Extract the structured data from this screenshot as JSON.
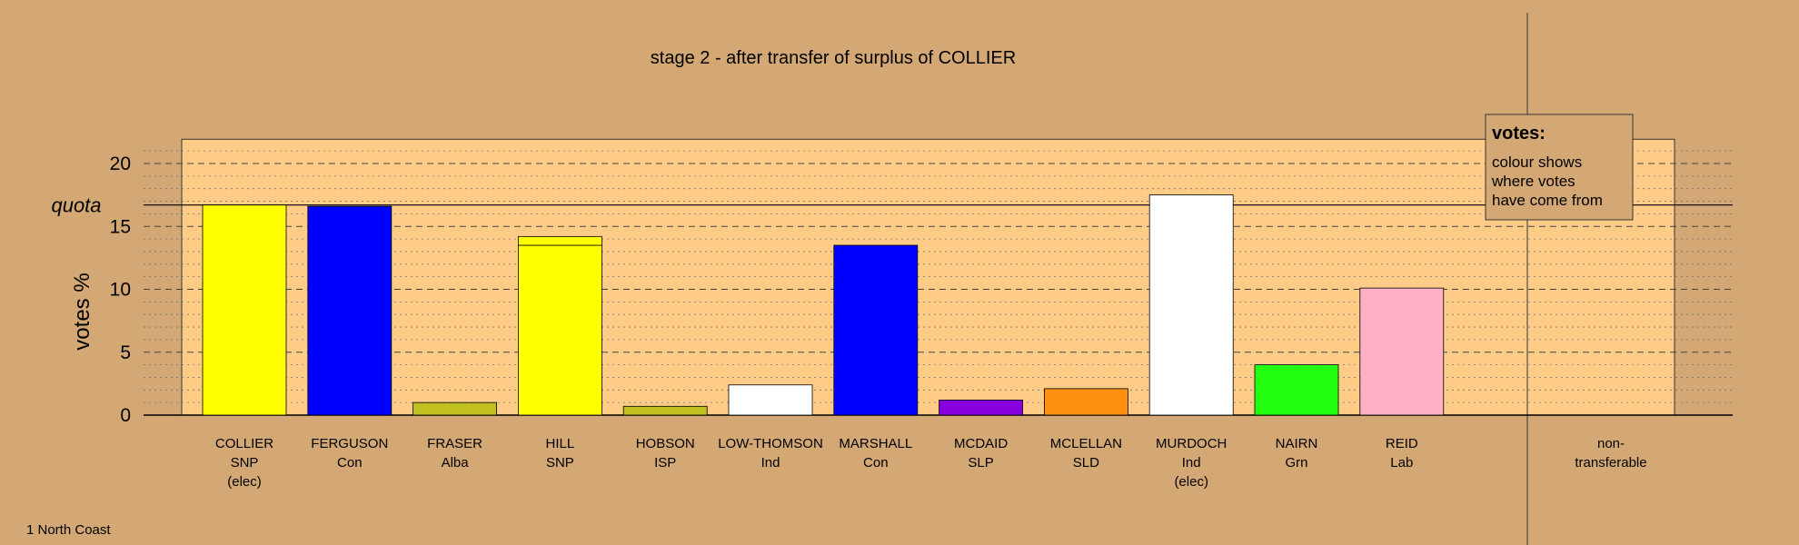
{
  "chart_data": {
    "type": "bar",
    "title": "stage 2 - after transfer of surplus of COLLIER",
    "ylabel": "votes %",
    "ylim": [
      0,
      22
    ],
    "yticks": [
      0,
      5,
      10,
      15,
      20
    ],
    "quota_label": "quota",
    "quota": 16.7,
    "grid": "dashed major, dotted minor",
    "categories": [
      {
        "name": "COLLIER",
        "party": "SNP",
        "note": "(elec)"
      },
      {
        "name": "FERGUSON",
        "party": "Con",
        "note": ""
      },
      {
        "name": "FRASER",
        "party": "Alba",
        "note": ""
      },
      {
        "name": "HILL",
        "party": "SNP",
        "note": ""
      },
      {
        "name": "HOBSON",
        "party": "ISP",
        "note": ""
      },
      {
        "name": "LOW-THOMSON",
        "party": "Ind",
        "note": ""
      },
      {
        "name": "MARSHALL",
        "party": "Con",
        "note": ""
      },
      {
        "name": "MCDAID",
        "party": "SLP",
        "note": ""
      },
      {
        "name": "MCLELLAN",
        "party": "SLD",
        "note": ""
      },
      {
        "name": "MURDOCH",
        "party": "Ind",
        "note": "(elec)"
      },
      {
        "name": "NAIRN",
        "party": "Grn",
        "note": ""
      },
      {
        "name": "REID",
        "party": "Lab",
        "note": ""
      }
    ],
    "nontransferable_label_1": "non-",
    "nontransferable_label_2": "transferable",
    "bars": [
      {
        "segments": [
          {
            "value": 16.7,
            "color": "#ffff00"
          }
        ]
      },
      {
        "segments": [
          {
            "value": 16.6,
            "color": "#0000ff"
          }
        ]
      },
      {
        "segments": [
          {
            "value": 1.0,
            "color": "#c0c020"
          }
        ]
      },
      {
        "segments": [
          {
            "value": 13.5,
            "color": "#ffff00"
          },
          {
            "value": 0.7,
            "color": "#ffff00"
          }
        ]
      },
      {
        "segments": [
          {
            "value": 0.7,
            "color": "#c0c020"
          }
        ]
      },
      {
        "segments": [
          {
            "value": 2.4,
            "color": "#ffffff"
          }
        ]
      },
      {
        "segments": [
          {
            "value": 13.5,
            "color": "#0000ff"
          }
        ]
      },
      {
        "segments": [
          {
            "value": 1.2,
            "color": "#8800dd"
          }
        ]
      },
      {
        "segments": [
          {
            "value": 2.1,
            "color": "#ff9010"
          }
        ]
      },
      {
        "segments": [
          {
            "value": 17.5,
            "color": "#ffffff"
          }
        ]
      },
      {
        "segments": [
          {
            "value": 4.0,
            "color": "#22ff11"
          }
        ]
      },
      {
        "segments": [
          {
            "value": 10.1,
            "color": "#ffb0c4"
          }
        ]
      }
    ],
    "nontransferable_value": 0.0,
    "legend": {
      "title": "votes:",
      "line1": "colour shows",
      "line2": "where votes",
      "line3": "have come from",
      "placement": "top-right"
    },
    "footnote": "1 North Coast"
  },
  "colors": {
    "background": "#d4a874",
    "plot_area": "#ffcc88"
  }
}
